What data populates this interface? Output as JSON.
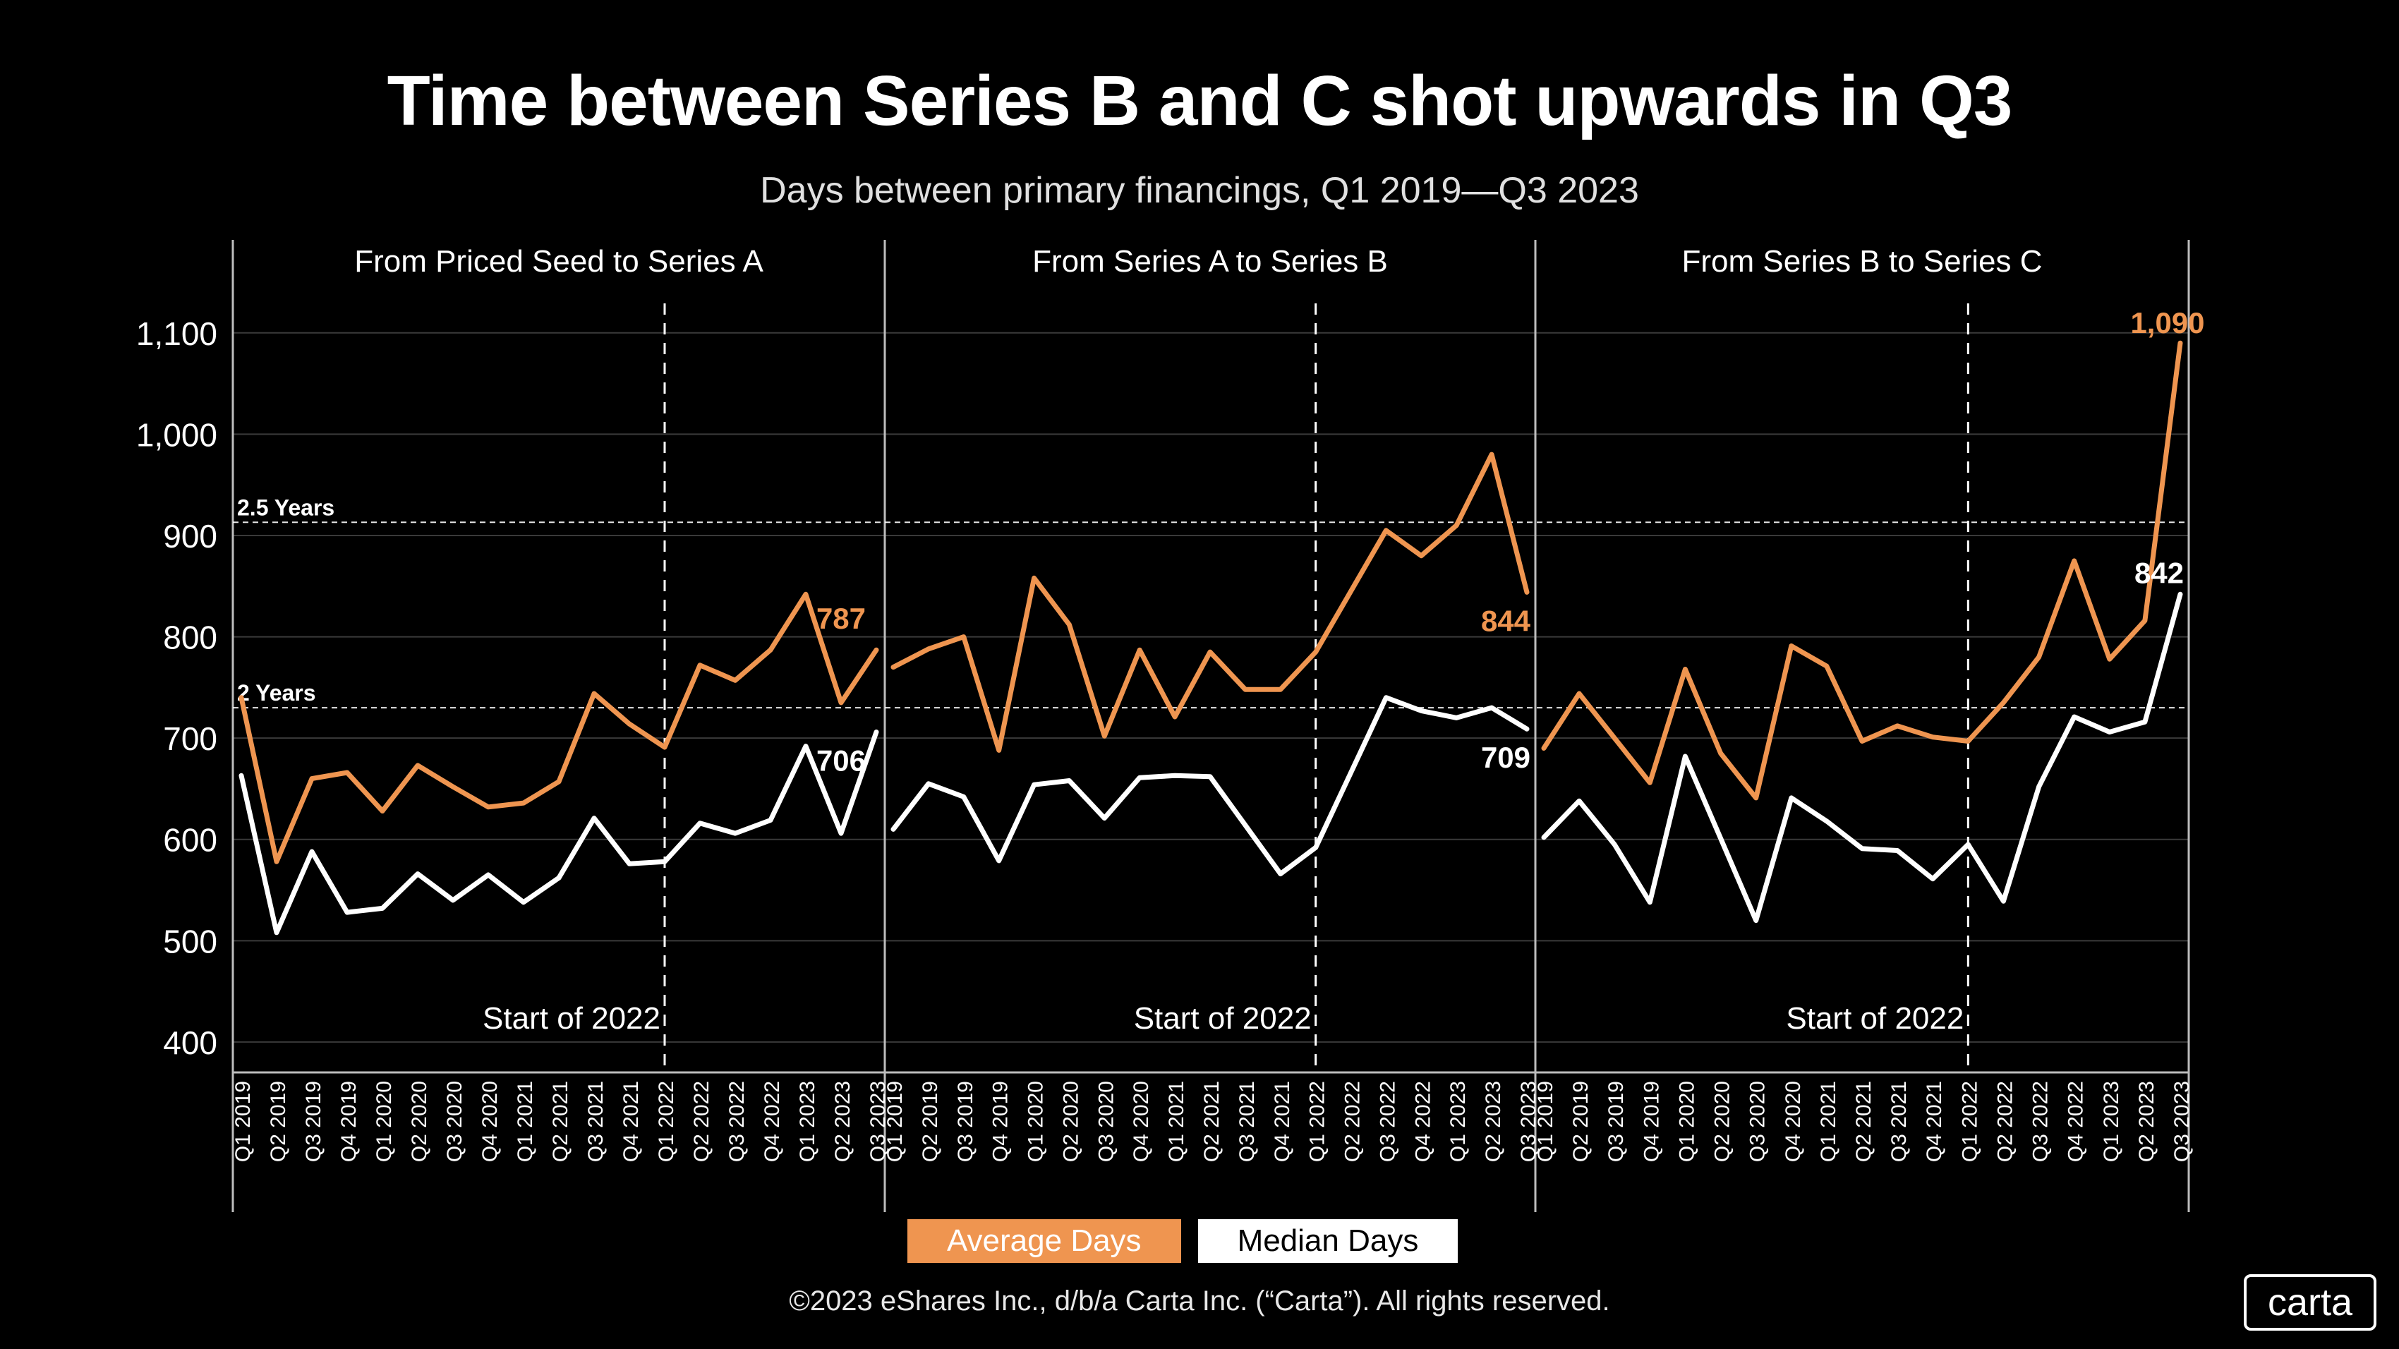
{
  "title": "Time between Series B and C shot upwards in Q3",
  "subtitle": "Days between primary financings, Q1 2019—Q3 2023",
  "legend": {
    "average": "Average Days",
    "median": "Median Days"
  },
  "footer": {
    "copyright": "©2023 eShares Inc., d/b/a Carta Inc. (“Carta”). All rights reserved.",
    "brand": "carta"
  },
  "colors": {
    "average": "#ef9550",
    "median": "#ffffff",
    "background": "#000000",
    "grid": "#3a3a3a"
  },
  "chart_data": {
    "type": "line",
    "ylim": [
      370,
      1150
    ],
    "yticks": [
      400,
      500,
      600,
      700,
      800,
      900,
      1000,
      1100
    ],
    "ytick_labels": [
      "400",
      "500",
      "600",
      "700",
      "800",
      "900",
      "1,000",
      "1,100"
    ],
    "categories": [
      "Q1 2019",
      "Q2 2019",
      "Q3 2019",
      "Q4 2019",
      "Q1 2020",
      "Q2 2020",
      "Q3 2020",
      "Q4 2020",
      "Q1 2021",
      "Q2 2021",
      "Q3 2021",
      "Q4 2021",
      "Q1 2022",
      "Q2 2022",
      "Q3 2022",
      "Q4 2022",
      "Q1 2023",
      "Q2 2023",
      "Q3 2023"
    ],
    "reference_lines": [
      {
        "label": "2.5 Years",
        "value": 913
      },
      {
        "label": "2 Years",
        "value": 730
      }
    ],
    "marker": {
      "label": "Start of 2022",
      "category": "Q1 2022"
    },
    "panels": [
      {
        "title": "From Priced Seed to Series A",
        "series": [
          {
            "name": "Average Days",
            "values": [
              740,
              578,
              660,
              666,
              628,
              673,
              652,
              632,
              636,
              657,
              744,
              714,
              691,
              772,
              757,
              787,
              842,
              735,
              787
            ]
          },
          {
            "name": "Median Days",
            "values": [
              663,
              508,
              588,
              528,
              532,
              566,
              540,
              565,
              538,
              562,
              621,
              576,
              578,
              616,
              606,
              619,
              692,
              606,
              706
            ]
          }
        ],
        "labels": {
          "average_last": "787",
          "median_last": "706"
        }
      },
      {
        "title": "From Series A to Series B",
        "series": [
          {
            "name": "Average Days",
            "values": [
              770,
              788,
              800,
              688,
              858,
              812,
              702,
              787,
              721,
              785,
              748,
              748,
              785,
              845,
              905,
              880,
              910,
              980,
              844
            ]
          },
          {
            "name": "Median Days",
            "values": [
              610,
              655,
              642,
              579,
              654,
              658,
              621,
              661,
              663,
              662,
              614,
              566,
              592,
              666,
              740,
              727,
              720,
              730,
              709
            ]
          }
        ],
        "labels": {
          "average_last": "844",
          "median_last": "709"
        }
      },
      {
        "title": "From Series B to Series C",
        "series": [
          {
            "name": "Average Days",
            "values": [
              690,
              744,
              700,
              656,
              768,
              685,
              641,
              791,
              771,
              697,
              712,
              701,
              697,
              735,
              780,
              875,
              778,
              816,
              1090
            ]
          },
          {
            "name": "Median Days",
            "values": [
              602,
              638,
              595,
              538,
              682,
              601,
              520,
              641,
              618,
              591,
              589,
              561,
              595,
              539,
              652,
              721,
              706,
              716,
              842
            ]
          }
        ],
        "labels": {
          "average_last": "1,090",
          "median_last": "842"
        }
      }
    ]
  }
}
